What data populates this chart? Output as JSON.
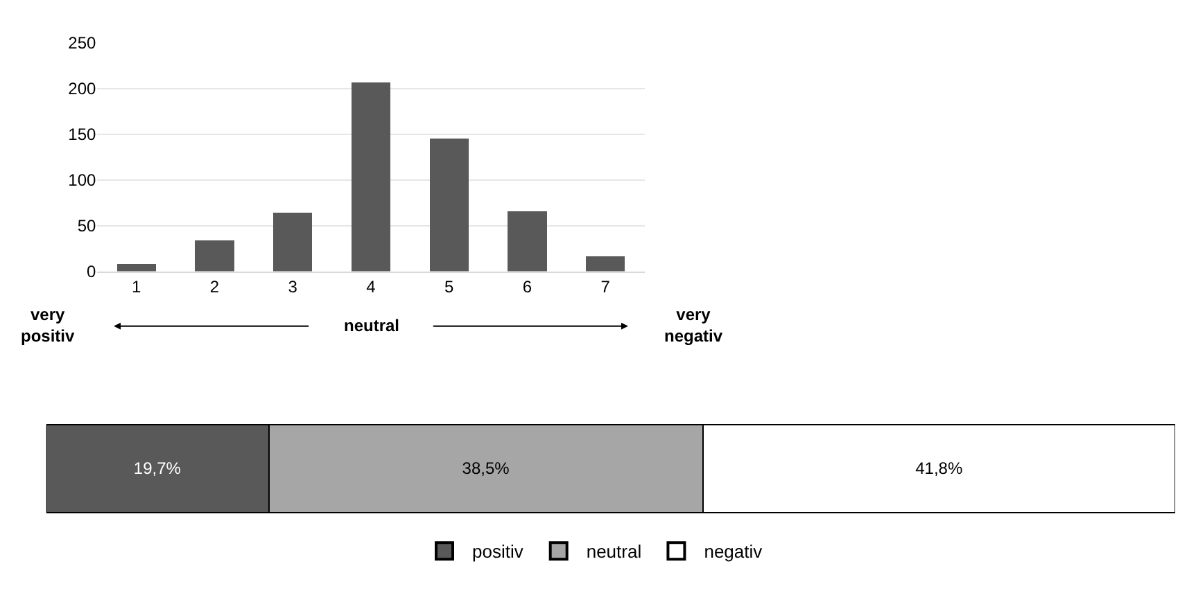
{
  "chart_data": [
    {
      "type": "bar",
      "categories": [
        "1",
        "2",
        "3",
        "4",
        "5",
        "6",
        "7"
      ],
      "values": [
        8,
        34,
        64,
        207,
        145,
        66,
        16
      ],
      "color": "#595959",
      "ylim": [
        0,
        250
      ],
      "yticks": [
        0,
        50,
        100,
        150,
        200,
        250
      ],
      "grid": "y",
      "legend": false,
      "annotations": [
        "very\npositiv",
        "neutral",
        "very\nnegativ"
      ]
    },
    {
      "type": "bar",
      "orientation": "horizontal",
      "stacked": true,
      "categories": [
        null
      ],
      "legend": "bottom",
      "series": [
        {
          "name": "positiv",
          "color": "#595959",
          "values": [
            19.7
          ],
          "value_labels": [
            "19,7%"
          ]
        },
        {
          "name": "neutral",
          "color": "#a6a6a6",
          "values": [
            38.5
          ],
          "value_labels": [
            "38,5%"
          ]
        },
        {
          "name": "negativ",
          "color": "#ffffff",
          "values": [
            41.8
          ],
          "value_labels": [
            "41,8%"
          ]
        }
      ]
    }
  ]
}
